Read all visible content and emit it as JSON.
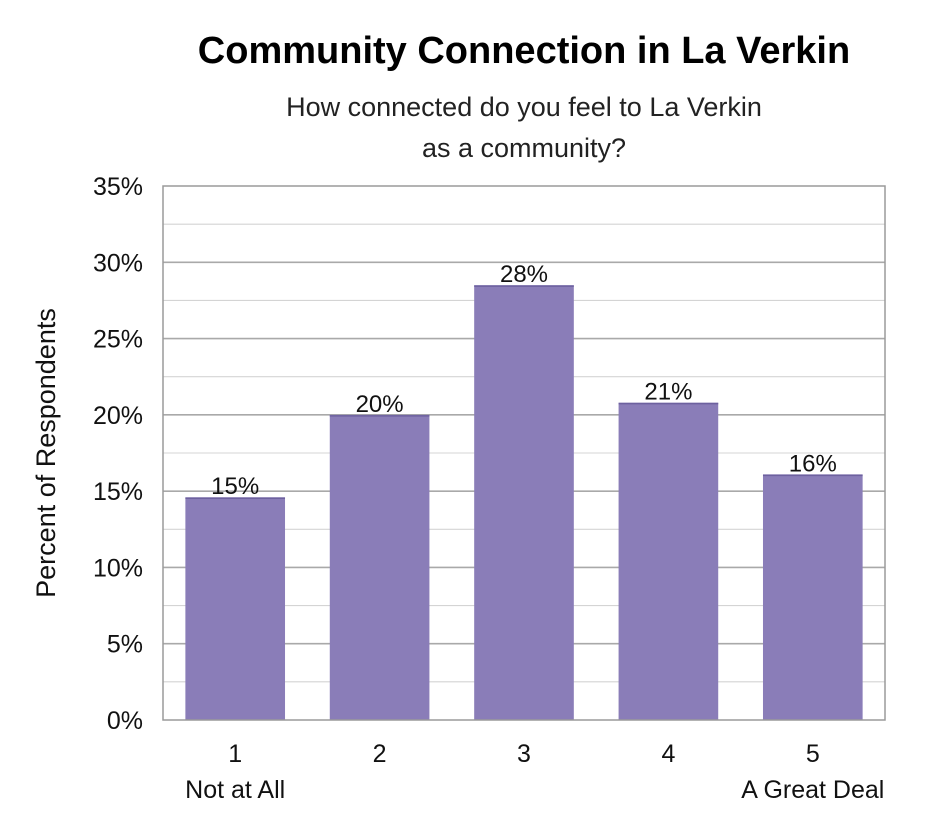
{
  "chart_data": {
    "type": "bar",
    "title": "Community Connection in La Verkin",
    "subtitle_lines": [
      "How connected do you feel to La Verkin",
      "as a community?"
    ],
    "ylabel": "Percent of Respondents",
    "xlabel": "",
    "categories": [
      "1",
      "2",
      "3",
      "4",
      "5"
    ],
    "scale_anchor_labels": {
      "first": "Not at All",
      "last": "A Great Deal"
    },
    "values": [
      14.6,
      20.0,
      28.5,
      20.8,
      16.1
    ],
    "data_labels": [
      "15%",
      "20%",
      "28%",
      "21%",
      "16%"
    ],
    "ylim": [
      0,
      35
    ],
    "yticks": [
      0,
      5,
      10,
      15,
      20,
      25,
      30,
      35
    ],
    "ytick_labels": [
      "0%",
      "5%",
      "10%",
      "15%",
      "20%",
      "25%",
      "30%",
      "35%"
    ],
    "grid": true,
    "bar_color": "#8a7db8",
    "gridline_color": "#bdbdbd",
    "axis_color": "#9a9a9a"
  }
}
